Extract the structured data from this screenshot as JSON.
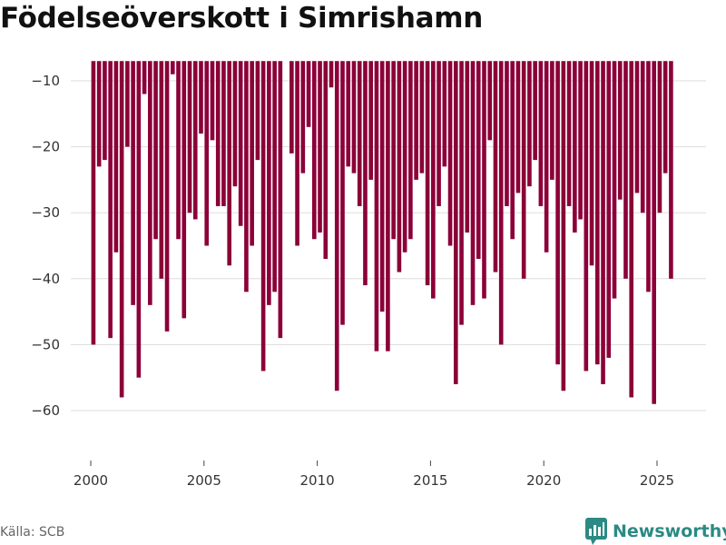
{
  "title": "Födelseöverskott i Simrishamn",
  "source": "Källa: SCB",
  "brand": {
    "name": "Newsworthy",
    "icon": "newsworthy-logo-icon"
  },
  "colors": {
    "bar": "#8b0038",
    "grid": "#dddddd",
    "brand": "#2b8a84"
  },
  "chart_data": {
    "type": "bar",
    "title": "Födelseöverskott i Simrishamn",
    "xlabel": "",
    "ylabel": "",
    "baseline": -7,
    "ylim": [
      -68,
      -7
    ],
    "y_ticks": [
      -10,
      -20,
      -30,
      -40,
      -50,
      -60
    ],
    "y_tick_labels": [
      "−10",
      "−20",
      "−30",
      "−40",
      "−50",
      "−60"
    ],
    "x_ticks": [
      2000,
      2005,
      2010,
      2015,
      2020,
      2025
    ],
    "x_tick_labels": [
      "2000",
      "2005",
      "2010",
      "2015",
      "2020",
      "2025"
    ],
    "x_start": 2000.0,
    "period_years": 0.25,
    "grid": true,
    "series": [
      {
        "name": "Födelseöverskott",
        "values": [
          -50,
          -23,
          -22,
          -49,
          -36,
          -58,
          -20,
          -44,
          -55,
          -12,
          -44,
          -34,
          -40,
          -48,
          -9,
          -34,
          -46,
          -30,
          -31,
          -18,
          -35,
          -19,
          -29,
          -29,
          -38,
          -26,
          -32,
          -42,
          -35,
          -22,
          -54,
          -44,
          -42,
          -49,
          null,
          -21,
          -35,
          -24,
          -17,
          -34,
          -33,
          -37,
          -11,
          -57,
          -47,
          -23,
          -24,
          -29,
          -41,
          -25,
          -51,
          -45,
          -51,
          -34,
          -39,
          -36,
          -34,
          -25,
          -24,
          -41,
          -43,
          -29,
          -23,
          -35,
          -56,
          -47,
          -33,
          -44,
          -37,
          -43,
          -19,
          -39,
          -50,
          -29,
          -34,
          -27,
          -40,
          -26,
          -22,
          -29,
          -36,
          -25,
          -53,
          -57,
          -29,
          -33,
          -31,
          -54,
          -38,
          -53,
          -56,
          -52,
          -43,
          -28,
          -40,
          -58,
          -27,
          -30,
          -42,
          -59,
          -30,
          -24,
          -40
        ]
      }
    ]
  }
}
